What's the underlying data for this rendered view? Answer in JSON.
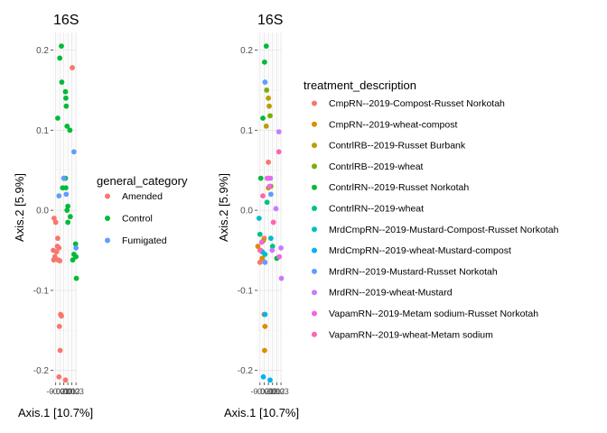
{
  "chart_data": [
    {
      "type": "scatter",
      "title": "16S",
      "xlabel": "Axis.1   [10.7%]",
      "ylabel": "Axis.2   [5.9%]",
      "xlim": [
        -0.026,
        0.032
      ],
      "ylim": [
        -0.215,
        0.222
      ],
      "x_ticks": [
        "-0.02",
        "-0.01",
        "0.00",
        "0.01",
        "0.02",
        "0.03"
      ],
      "y_ticks": [
        "0.2",
        "0.1",
        "0.0",
        "-0.1",
        "-0.2"
      ],
      "grid": true,
      "legend": {
        "title": "general_category",
        "position": "right",
        "entries": [
          {
            "label": "Amended",
            "color": "#F8766D"
          },
          {
            "label": "Control",
            "color": "#00BA38"
          },
          {
            "label": "Fumigated",
            "color": "#619CFF"
          }
        ]
      },
      "series": [
        {
          "name": "Amended",
          "color": "#F8766D",
          "points": [
            [
              0.021,
              0.178
            ],
            [
              -0.024,
              -0.01
            ],
            [
              -0.02,
              -0.015
            ],
            [
              -0.026,
              -0.05
            ],
            [
              -0.022,
              -0.058
            ],
            [
              -0.018,
              -0.052
            ],
            [
              -0.025,
              -0.062
            ],
            [
              -0.012,
              -0.047
            ],
            [
              -0.014,
              -0.062
            ],
            [
              -0.01,
              -0.063
            ],
            [
              -0.016,
              -0.045
            ],
            [
              -0.008,
              -0.13
            ],
            [
              -0.006,
              -0.132
            ],
            [
              -0.011,
              -0.145
            ],
            [
              -0.009,
              -0.175
            ],
            [
              -0.012,
              -0.208
            ],
            [
              0.004,
              -0.212
            ],
            [
              -0.015,
              -0.035
            ]
          ]
        },
        {
          "name": "Control",
          "color": "#00BA38",
          "points": [
            [
              -0.006,
              0.205
            ],
            [
              -0.01,
              0.19
            ],
            [
              -0.005,
              0.16
            ],
            [
              0.004,
              0.148
            ],
            [
              0.005,
              0.14
            ],
            [
              0.006,
              0.13
            ],
            [
              -0.015,
              0.115
            ],
            [
              0.008,
              0.105
            ],
            [
              0.015,
              0.1
            ],
            [
              0.0,
              0.04
            ],
            [
              0.004,
              0.04
            ],
            [
              -0.003,
              0.028
            ],
            [
              0.005,
              0.028
            ],
            [
              0.01,
              0.005
            ],
            [
              0.008,
              0.0
            ],
            [
              0.016,
              -0.008
            ],
            [
              0.01,
              -0.015
            ],
            [
              0.029,
              -0.042
            ],
            [
              0.03,
              -0.058
            ],
            [
              0.025,
              -0.055
            ],
            [
              0.022,
              -0.062
            ],
            [
              0.031,
              -0.085
            ]
          ]
        },
        {
          "name": "Fumigated",
          "color": "#619CFF",
          "points": [
            [
              0.025,
              0.073
            ],
            [
              0.0,
              0.04
            ],
            [
              -0.012,
              0.018
            ],
            [
              0.006,
              0.02
            ],
            [
              0.03,
              -0.047
            ]
          ]
        }
      ]
    },
    {
      "type": "scatter",
      "title": "16S",
      "xlabel": "Axis.1   [10.7%]",
      "ylabel": "Axis.2   [5.9%]",
      "xlim": [
        -0.026,
        0.032
      ],
      "ylim": [
        -0.215,
        0.222
      ],
      "x_ticks": [
        "-0.02",
        "-0.01",
        "0.00",
        "0.01",
        "0.02",
        "0.03"
      ],
      "y_ticks": [
        "0.2",
        "0.1",
        "0.0",
        "-0.1",
        "-0.2"
      ],
      "grid": true,
      "legend": {
        "title": "treatment_description",
        "position": "right",
        "entries": [
          {
            "label": "CmpRN--2019-Compost-Russet Norkotah",
            "color": "#F8766D"
          },
          {
            "label": "CmpRN--2019-wheat-compost",
            "color": "#DE8C00"
          },
          {
            "label": "ContrlRB--2019-Russet Burbank",
            "color": "#B79F00"
          },
          {
            "label": "ContrlRB--2019-wheat",
            "color": "#7CAE00"
          },
          {
            "label": "ContrlRN--2019-Russet Norkotah",
            "color": "#00BA38"
          },
          {
            "label": "ContrlRN--2019-wheat",
            "color": "#00C08B"
          },
          {
            "label": "MrdCmpRN--2019-Mustard-Compost-Russet Norkotah",
            "color": "#00BFC4"
          },
          {
            "label": "MrdCmpRN--2019-wheat-Mustard-compost",
            "color": "#00B4F0"
          },
          {
            "label": "MrdRN--2019-Mustard-Russet Norkotah",
            "color": "#619CFF"
          },
          {
            "label": "MrdRN--2019-wheat-Mustard",
            "color": "#C77CFF"
          },
          {
            "label": "VapamRN--2019-Metam sodium-Russet Norkotah",
            "color": "#F564E3"
          },
          {
            "label": "VapamRN--2019-wheat-Metam sodium",
            "color": "#FF64B0"
          }
        ]
      },
      "series": [
        {
          "name": "CmpRN--2019-Compost-Russet Norkotah",
          "color": "#F8766D",
          "points": [
            [
              -0.01,
              -0.035
            ],
            [
              -0.018,
              -0.05
            ],
            [
              -0.014,
              -0.06
            ],
            [
              0.0,
              0.06
            ],
            [
              -0.02,
              -0.065
            ]
          ]
        },
        {
          "name": "CmpRN--2019-wheat-compost",
          "color": "#DE8C00",
          "points": [
            [
              -0.025,
              -0.045
            ],
            [
              -0.01,
              -0.13
            ],
            [
              -0.008,
              -0.145
            ],
            [
              -0.009,
              -0.175
            ],
            [
              -0.015,
              -0.06
            ]
          ]
        },
        {
          "name": "ContrlRB--2019-Russet Burbank",
          "color": "#B79F00",
          "points": [
            [
              0.0,
              0.14
            ],
            [
              0.002,
              0.13
            ],
            [
              -0.005,
              0.105
            ],
            [
              0.0,
              0.028
            ],
            [
              -0.012,
              -0.038
            ]
          ]
        },
        {
          "name": "ContrlRB--2019-wheat",
          "color": "#7CAE00",
          "points": [
            [
              -0.004,
              0.15
            ],
            [
              0.004,
              0.118
            ],
            [
              0.006,
              0.03
            ]
          ]
        },
        {
          "name": "ContrlRN--2019-Russet Norkotah",
          "color": "#00BA38",
          "points": [
            [
              -0.005,
              0.205
            ],
            [
              -0.009,
              0.185
            ],
            [
              -0.013,
              0.115
            ],
            [
              -0.018,
              0.04
            ],
            [
              0.02,
              -0.06
            ]
          ]
        },
        {
          "name": "ContrlRN--2019-wheat",
          "color": "#00C08B",
          "points": [
            [
              -0.003,
              0.01
            ],
            [
              0.01,
              -0.045
            ],
            [
              -0.02,
              -0.03
            ]
          ]
        },
        {
          "name": "MrdCmpRN--2019-Mustard-Compost-Russet Norkotah",
          "color": "#00BFC4",
          "points": [
            [
              -0.022,
              -0.01
            ],
            [
              -0.008,
              -0.055
            ],
            [
              0.006,
              -0.035
            ]
          ]
        },
        {
          "name": "MrdCmpRN--2019-wheat-Mustard-compost",
          "color": "#00B4F0",
          "points": [
            [
              -0.008,
              -0.13
            ],
            [
              -0.012,
              -0.208
            ],
            [
              0.004,
              -0.212
            ],
            [
              -0.014,
              -0.052
            ]
          ]
        },
        {
          "name": "MrdRN--2019-Mustard-Russet Norkotah",
          "color": "#619CFF",
          "points": [
            [
              -0.008,
              0.16
            ],
            [
              0.006,
              0.02
            ],
            [
              -0.008,
              -0.065
            ]
          ]
        },
        {
          "name": "MrdRN--2019-wheat-Mustard",
          "color": "#C77CFF",
          "points": [
            [
              0.025,
              0.098
            ],
            [
              -0.003,
              0.04
            ],
            [
              0.005,
              0.04
            ],
            [
              0.018,
              0.002
            ],
            [
              0.03,
              -0.047
            ],
            [
              0.031,
              -0.085
            ],
            [
              0.009,
              -0.05
            ]
          ]
        },
        {
          "name": "VapamRN--2019-Metam sodium-Russet Norkotah",
          "color": "#F564E3",
          "points": [
            [
              0.0,
              0.04
            ],
            [
              0.003,
              0.03
            ],
            [
              -0.016,
              -0.04
            ],
            [
              0.026,
              -0.058
            ]
          ]
        },
        {
          "name": "VapamRN--2019-wheat-Metam sodium",
          "color": "#FF64B0",
          "points": [
            [
              0.025,
              0.073
            ],
            [
              -0.013,
              0.018
            ],
            [
              -0.02,
              -0.05
            ],
            [
              0.012,
              -0.015
            ]
          ]
        }
      ]
    }
  ]
}
